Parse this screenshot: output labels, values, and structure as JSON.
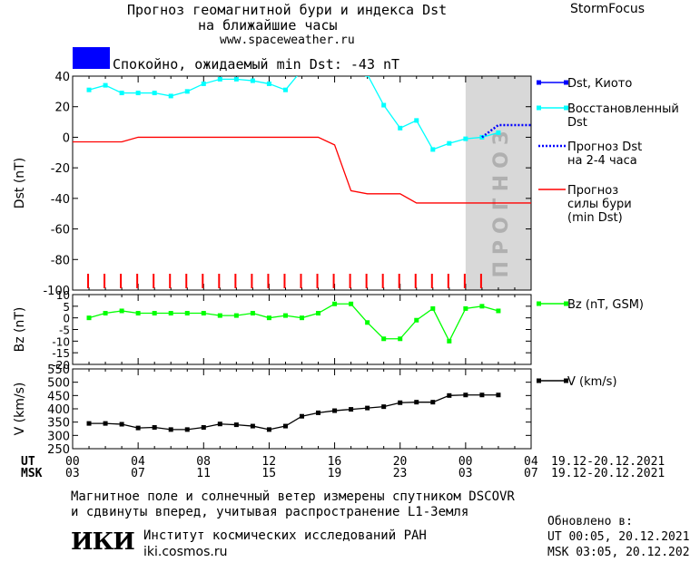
{
  "header": {
    "title_line1": "Прогноз геомагнитной бури и индекса Dst",
    "title_line2": "на ближайшие часы",
    "website": "www.spaceweather.ru",
    "brand": "StormFocus",
    "status_color": "#0000ff",
    "status_text": "Спокойно, ожидаемый min Dst: -43 nT"
  },
  "forecast_band_label": "ПРОГНОЗ",
  "time_axis": {
    "ut_label": "UT",
    "msk_label": "MSK",
    "ut_ticks": [
      "00",
      "04",
      "08",
      "12",
      "16",
      "20",
      "00",
      "04"
    ],
    "msk_ticks": [
      "03",
      "07",
      "11",
      "15",
      "19",
      "23",
      "03",
      "07"
    ],
    "ut_range": "19.12-20.12.2021",
    "msk_range": "19.12-20.12.2021"
  },
  "footer": {
    "note_line1": "Магнитное поле и солнечный ветер измерены спутником DSCOVR",
    "note_line2": "и сдвинуты вперед, учитывая распространение L1-Земля",
    "logo_text": "ИКИ",
    "institute": "Институт космических исследований РАН",
    "institute_url": "iki.cosmos.ru",
    "updated_label": "Обновлено в:",
    "updated_ut": "UT  00:05, 20.12.2021",
    "updated_msk": "MSK 03:05, 20.12.2021"
  },
  "chart_data": [
    {
      "type": "line",
      "ylabel": "Dst (nT)",
      "ylim": [
        -100,
        40
      ],
      "yticks": [
        40,
        20,
        0,
        -20,
        -40,
        -60,
        -80,
        -100
      ],
      "xlim": [
        0,
        28
      ],
      "forecast_start": 24,
      "forecast_end": 28,
      "series": [
        {
          "name": "Dst, Киото",
          "color": "#0000ff",
          "style": "solid",
          "x": [],
          "y": []
        },
        {
          "name": "Восстановленный Dst",
          "color": "#00ffff",
          "style": "solid",
          "x": [
            0,
            1,
            2,
            3,
            4,
            5,
            6,
            7,
            8,
            9,
            10,
            11,
            12,
            13,
            14,
            15,
            16,
            17,
            18,
            19,
            20,
            21,
            22,
            23,
            24,
            25
          ],
          "y": [
            31,
            34,
            29,
            29,
            29,
            27,
            30,
            35,
            38,
            38,
            37,
            35,
            31,
            44,
            47,
            48,
            46,
            41,
            21,
            6,
            11,
            -8,
            -4,
            -1,
            0,
            3
          ]
        },
        {
          "name": "Прогноз Dst на 2-4 часа",
          "color": "#0000ff",
          "style": "dotted",
          "x": [
            24,
            25,
            26,
            27
          ],
          "y": [
            0,
            8,
            8,
            8
          ]
        },
        {
          "name": "Прогноз силы бури (min Dst)",
          "color": "#ff0000",
          "style": "solid",
          "x": [
            -1,
            0,
            1,
            2,
            3,
            4,
            5,
            6,
            7,
            8,
            9,
            10,
            11,
            12,
            13,
            14,
            15,
            16,
            17,
            18,
            19,
            20,
            21,
            22,
            23,
            24,
            25,
            26,
            27,
            28
          ],
          "y": [
            -3,
            -3,
            -3,
            -3,
            0,
            0,
            0,
            0,
            0,
            0,
            0,
            0,
            0,
            0,
            0,
            0,
            -5,
            -35,
            -37,
            -37,
            -37,
            -43,
            -43,
            -43,
            -43,
            -43,
            -43,
            -43,
            -43,
            -43
          ]
        }
      ],
      "hour_markers": [
        -1,
        0,
        1,
        2,
        3,
        4,
        5,
        6,
        7,
        8,
        9,
        10,
        11,
        12,
        13,
        14,
        15,
        16,
        17,
        18,
        19,
        20,
        21,
        22,
        23,
        24
      ]
    },
    {
      "type": "line",
      "ylabel": "Bz (nT)",
      "ylim": [
        -20,
        10
      ],
      "yticks": [
        10,
        5,
        0,
        -5,
        -10,
        -15,
        -20
      ],
      "xlim": [
        0,
        28
      ],
      "series": [
        {
          "name": "Bz (nT, GSM)",
          "color": "#00ff00",
          "x": [
            0,
            1,
            2,
            3,
            4,
            5,
            6,
            7,
            8,
            9,
            10,
            11,
            12,
            13,
            14,
            15,
            16,
            17,
            18,
            19,
            20,
            21,
            22,
            23,
            24,
            25
          ],
          "y": [
            0,
            2,
            3,
            2,
            2,
            2,
            2,
            2,
            1,
            1,
            2,
            0,
            1,
            0,
            2,
            6,
            6,
            -2,
            -9,
            -9,
            -1,
            4,
            -10,
            4,
            5,
            3
          ]
        }
      ]
    },
    {
      "type": "line",
      "ylabel": "V (km/s)",
      "ylim": [
        250,
        550
      ],
      "yticks": [
        550,
        500,
        450,
        400,
        350,
        300,
        250
      ],
      "xlim": [
        0,
        28
      ],
      "series": [
        {
          "name": "V (km/s)",
          "color": "#000000",
          "x": [
            0,
            1,
            2,
            3,
            4,
            5,
            6,
            7,
            8,
            9,
            10,
            11,
            12,
            13,
            14,
            15,
            16,
            17,
            18,
            19,
            20,
            21,
            22,
            23,
            24,
            25
          ],
          "y": [
            345,
            345,
            342,
            328,
            330,
            322,
            322,
            330,
            343,
            340,
            335,
            322,
            335,
            372,
            385,
            393,
            398,
            403,
            408,
            423,
            425,
            425,
            450,
            452,
            452,
            452
          ]
        }
      ]
    }
  ]
}
